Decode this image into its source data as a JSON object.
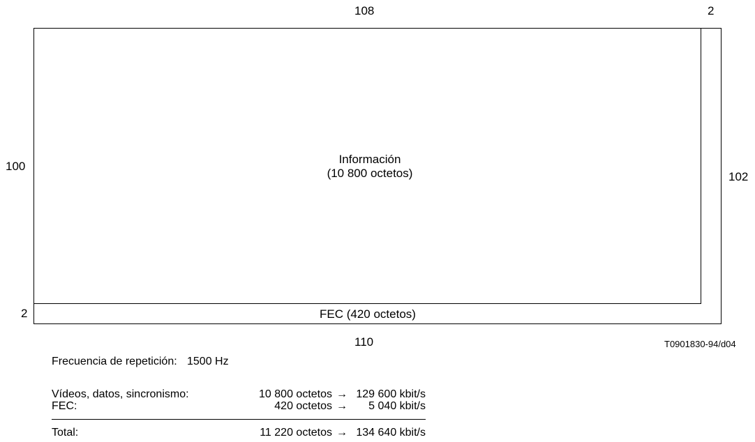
{
  "diagram": {
    "dims": {
      "top": "108",
      "top_right": "2",
      "left": "100",
      "right": "102",
      "bottom_left": "2",
      "bottom": "110"
    },
    "info_block": {
      "title": "Información",
      "subtitle": "(10 800 octetos)"
    },
    "fec_block": {
      "label": "FEC (420 octetos)"
    },
    "figure_ref": "T0901830-94/d04"
  },
  "notes": {
    "repetition_label": "Frecuencia de repetición:",
    "repetition_value": "1500 Hz",
    "rows": [
      {
        "label": "Vídeos, datos, sincronismo:",
        "octets": "10 800 octetos",
        "arrow": "→",
        "rate": "129 600 kbit/s"
      },
      {
        "label": "FEC:",
        "octets": "420 octetos",
        "arrow": "→",
        "rate": "5 040 kbit/s"
      }
    ],
    "total": {
      "label": "Total:",
      "octets": "11 220 octetos",
      "arrow": "→",
      "rate": "134 640 kbit/s"
    }
  }
}
